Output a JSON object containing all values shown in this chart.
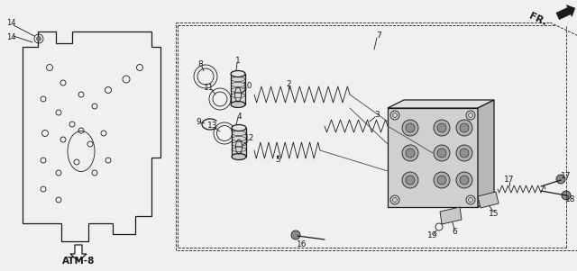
{
  "bg_color": "#f0f0f0",
  "text_color": "#1a1a1a",
  "fr_label": "FR.",
  "atm_label": "ATM-8",
  "line_color": "#1a1a1a",
  "lw_thin": 0.6,
  "lw_med": 0.9
}
